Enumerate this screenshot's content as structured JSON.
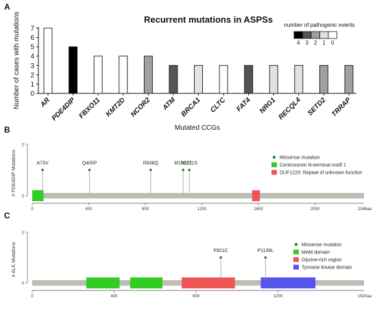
{
  "chart_data": [
    {
      "panel": "A",
      "type": "bar",
      "title": "Recurrent mutations in ASPSs",
      "xlabel": "Mutated CCGs",
      "ylabel": "Number of cases with mutations",
      "ylim": [
        0,
        7
      ],
      "yticks": [
        0,
        1,
        2,
        3,
        4,
        5,
        6,
        7
      ],
      "categories": [
        "AR",
        "PDE4DIP",
        "FBXO11",
        "KMT2D",
        "NCOR2",
        "ATM",
        "BRCA1",
        "CLTC",
        "FAT4",
        "NRG1",
        "RECQL4",
        "SETD2",
        "TRRAP"
      ],
      "values": [
        7,
        5,
        4,
        4,
        4,
        3,
        3,
        3,
        3,
        3,
        3,
        3,
        3
      ],
      "pathogenic_events": [
        0,
        4,
        0,
        0,
        2,
        3,
        1,
        0,
        3,
        1,
        1,
        2,
        2
      ],
      "legend": {
        "title": "number of pathogenic events",
        "placement": "top-right",
        "items": [
          {
            "label": "4",
            "color": "#000000"
          },
          {
            "label": "3",
            "color": "#555555"
          },
          {
            "label": "2",
            "color": "#a0a0a0"
          },
          {
            "label": "1",
            "color": "#e2e2e2"
          },
          {
            "label": "0",
            "color": "#ffffff"
          }
        ]
      }
    },
    {
      "panel": "B",
      "type": "lollipop",
      "ylabel": "# PDE4DIP Mutations",
      "ylim": [
        0,
        2
      ],
      "yticks": [
        "0",
        "2"
      ],
      "xlim": [
        0,
        2346
      ],
      "xticks": [
        "0",
        "400",
        "800",
        "1200",
        "1600",
        "2000"
      ],
      "xend_label": "2346aa",
      "mutations": [
        {
          "label": "A73V",
          "pos": 73,
          "count": 1
        },
        {
          "label": "Q405P",
          "pos": 405,
          "count": 1
        },
        {
          "label": "R838Q",
          "pos": 838,
          "count": 1
        },
        {
          "label": "M1067T",
          "pos": 1067,
          "count": 1
        },
        {
          "label": "N1111S",
          "pos": 1111,
          "count": 1
        }
      ],
      "domains": [
        {
          "name": "Centrosomin N-terminal motif 1",
          "start": 0,
          "end": 80,
          "color": "#33cc22"
        },
        {
          "name": "DUF1220: Repeat of unknown function",
          "start": 1555,
          "end": 1610,
          "color": "#f05555"
        }
      ],
      "legend": {
        "marker_label": "Missense mutation",
        "marker_color": "#1a8a1a"
      }
    },
    {
      "panel": "C",
      "type": "lollipop",
      "ylabel": "# ALK Mutations",
      "ylim": [
        0,
        2
      ],
      "yticks": [
        "0",
        "2"
      ],
      "xlim": [
        0,
        1620
      ],
      "xticks": [
        "0",
        "400",
        "800",
        "1200"
      ],
      "xend_label": "1620aa",
      "mutations": [
        {
          "label": "F921C",
          "pos": 921,
          "count": 1
        },
        {
          "label": "P1139L",
          "pos": 1139,
          "count": 1
        }
      ],
      "domains": [
        {
          "name": "MAM domain",
          "start": 264,
          "end": 427,
          "color": "#33cc22"
        },
        {
          "name": "MAM domain",
          "start": 478,
          "end": 636,
          "color": "#33cc22"
        },
        {
          "name": "Glycine-rich region",
          "start": 730,
          "end": 990,
          "color": "#f05555"
        },
        {
          "name": "Tyrosine kinase domain",
          "start": 1116,
          "end": 1383,
          "color": "#5555ee"
        }
      ],
      "legend": {
        "marker_label": "Missense mutation",
        "marker_color": "#1a8a1a"
      }
    }
  ]
}
